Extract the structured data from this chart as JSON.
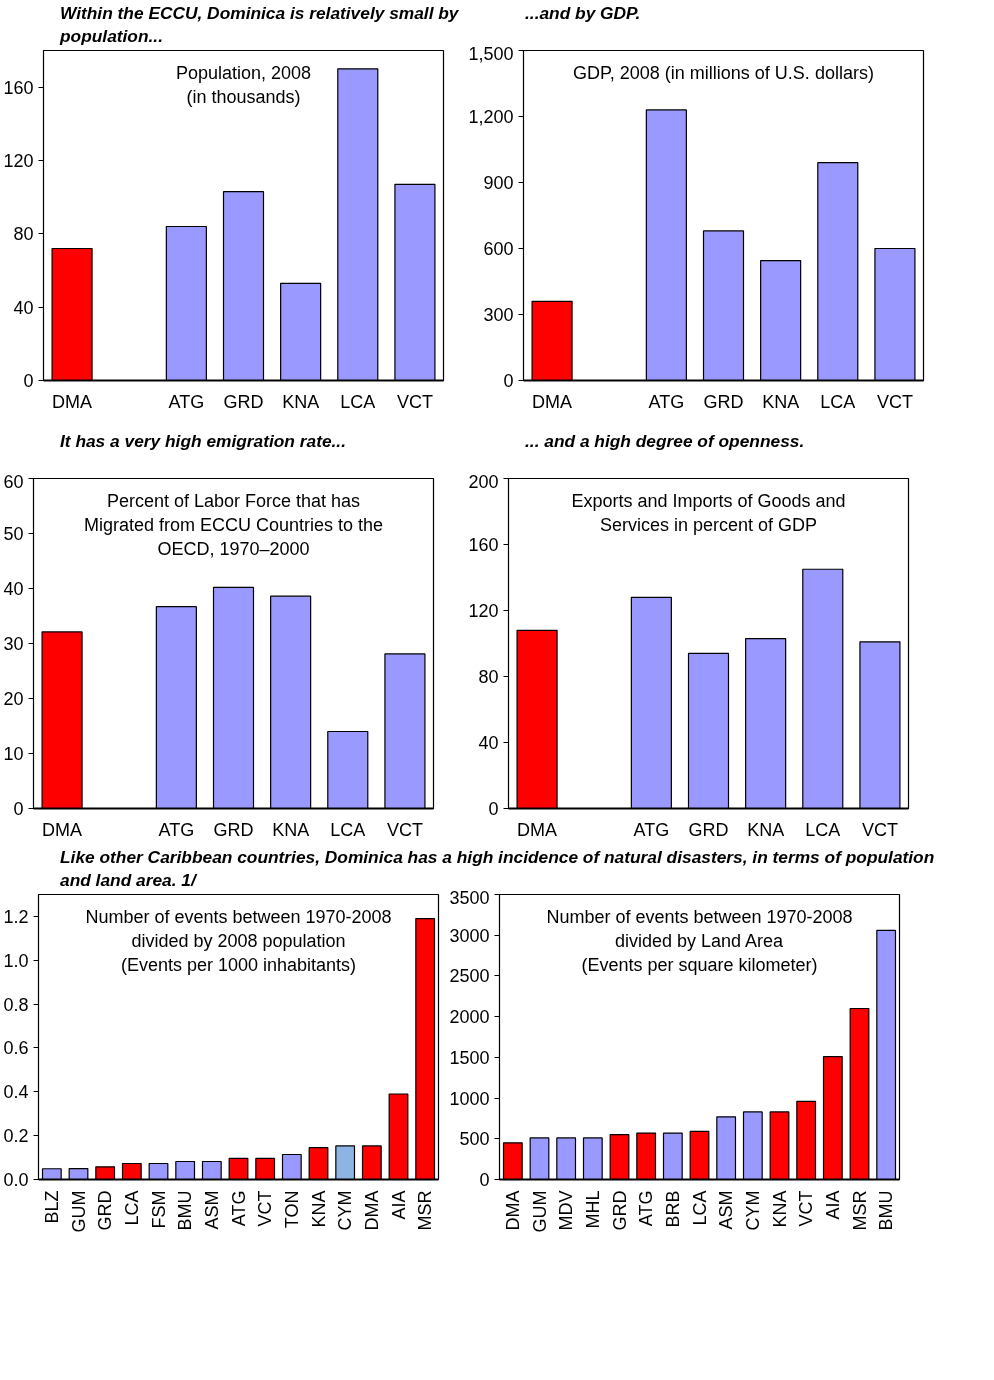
{
  "chart_data": [
    {
      "type": "bar",
      "title": "Within the ECCU, Dominica is relatively small by population...",
      "subtitle": "Population, 2008\n(in thousands)",
      "categories": [
        "DMA",
        null,
        "ATG",
        "GRD",
        "KNA",
        "LCA",
        "VCT"
      ],
      "values": [
        72,
        null,
        84,
        103,
        53,
        170,
        107
      ],
      "colors": [
        "#ff0000",
        "#9999ff",
        "#9999ff",
        "#9999ff",
        "#9999ff",
        "#9999ff",
        "#9999ff"
      ],
      "ylim": [
        0,
        180
      ],
      "yticks": [
        0,
        40,
        80,
        120,
        160
      ],
      "grid": false
    },
    {
      "type": "bar",
      "title": "...and by GDP.",
      "subtitle": "GDP, 2008 (in millions of U.S. dollars)",
      "categories": [
        "DMA",
        null,
        "ATG",
        "GRD",
        "KNA",
        "LCA",
        "VCT"
      ],
      "values": [
        360,
        null,
        1230,
        680,
        545,
        990,
        600
      ],
      "colors": [
        "#ff0000",
        "#9999ff",
        "#9999ff",
        "#9999ff",
        "#9999ff",
        "#9999ff",
        "#9999ff"
      ],
      "ylim": [
        0,
        1500
      ],
      "yticks": [
        0,
        300,
        600,
        900,
        {
          "value": 1200,
          "label": "1,200"
        },
        {
          "value": 1500,
          "label": "1,500"
        }
      ],
      "grid": false
    },
    {
      "type": "bar",
      "title": "It has a very high emigration rate...",
      "subtitle": "Percent of Labor Force that has\nMigrated from ECCU Countries to the\nOECD, 1970–2000",
      "categories": [
        "DMA",
        null,
        "ATG",
        "GRD",
        "KNA",
        "LCA",
        "VCT"
      ],
      "values": [
        32.1,
        null,
        36.7,
        40.2,
        38.6,
        14.0,
        28.1
      ],
      "colors": [
        "#ff0000",
        "#9999ff",
        "#9999ff",
        "#9999ff",
        "#9999ff",
        "#9999ff",
        "#9999ff"
      ],
      "ylim": [
        0,
        60
      ],
      "yticks": [
        0,
        10,
        20,
        30,
        40,
        50,
        60
      ],
      "grid": false
    },
    {
      "type": "bar",
      "title": "... and a high degree of openness.",
      "subtitle": "Exports and Imports of Goods and\nServices in percent of GDP",
      "categories": [
        "DMA",
        null,
        "ATG",
        "GRD",
        "KNA",
        "LCA",
        "VCT"
      ],
      "values": [
        108,
        null,
        128,
        94,
        103,
        145,
        101
      ],
      "colors": [
        "#ff0000",
        "#9999ff",
        "#9999ff",
        "#9999ff",
        "#9999ff",
        "#9999ff",
        "#9999ff"
      ],
      "ylim": [
        0,
        200
      ],
      "yticks": [
        0,
        40,
        80,
        120,
        160,
        200
      ],
      "grid": false
    },
    {
      "type": "bar",
      "title": "Like other Caribbean countries, Dominica has a high incidence of natural disasters, in terms of population and land area. 1/",
      "subtitle": "Number of events between 1970-2008\ndivided by 2008 population\n(Events per 1000 inhabitants)",
      "categories": [
        "BLZ",
        "GUM",
        "GRD",
        "LCA",
        "FSM",
        "BMU",
        "ASM",
        "ATG",
        "VCT",
        "TON",
        "KNA",
        "CYM",
        "DMA",
        "AIA",
        "MSR"
      ],
      "values": [
        0.049,
        0.05,
        0.058,
        0.073,
        0.073,
        0.082,
        0.082,
        0.096,
        0.096,
        0.114,
        0.145,
        0.153,
        0.153,
        0.39,
        1.19
      ],
      "colors": [
        "#9999ff",
        "#9999ff",
        "#ff0000",
        "#ff0000",
        "#9999ff",
        "#9999ff",
        "#9999ff",
        "#ff0000",
        "#ff0000",
        "#9999ff",
        "#ff0000",
        "#8db4e2",
        "#ff0000",
        "#ff0000",
        "#ff0000"
      ],
      "ylim": [
        0,
        1.3
      ],
      "yticks": [
        {
          "value": 0,
          "label": "0.0"
        },
        0.2,
        0.4,
        0.6,
        0.8,
        {
          "value": 1,
          "label": "1.0"
        },
        1.2
      ],
      "grid": false
    },
    {
      "type": "bar",
      "subtitle": "Number of events between 1970-2008\ndivided by Land Area\n(Events per square kilometer)",
      "categories": [
        "DMA",
        "GUM",
        "MDV",
        "MHL",
        "GRD",
        "ATG",
        "BRB",
        "LCA",
        "ASM",
        "CYM",
        "KNA",
        "VCT",
        "AIA",
        "MSR",
        "BMU"
      ],
      "values": [
        450,
        510,
        510,
        510,
        550,
        570,
        570,
        590,
        770,
        830,
        830,
        960,
        1510,
        2100,
        3060
      ],
      "colors": [
        "#ff0000",
        "#9999ff",
        "#9999ff",
        "#9999ff",
        "#ff0000",
        "#ff0000",
        "#9999ff",
        "#ff0000",
        "#9999ff",
        "#9999ff",
        "#ff0000",
        "#ff0000",
        "#ff0000",
        "#ff0000",
        "#9999ff"
      ],
      "ylim": [
        0,
        3500
      ],
      "yticks": [
        0,
        500,
        1000,
        1500,
        2000,
        2500,
        3000,
        3500
      ],
      "grid": false
    }
  ]
}
